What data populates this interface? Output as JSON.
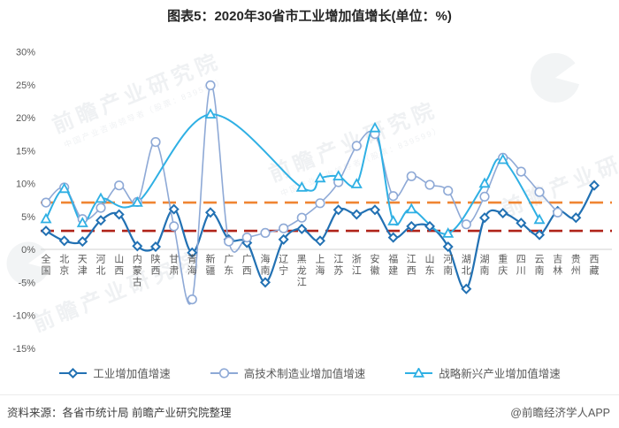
{
  "title": "图表5：2020年30省市工业增加值增长(单位：%)",
  "chart_data": {
    "type": "line",
    "title": "2020年30省市工业增加值增长",
    "unit": "%",
    "xlabel": "",
    "ylabel": "",
    "ylim": [
      -15,
      30
    ],
    "yticks": [
      "30%",
      "25%",
      "20%",
      "15%",
      "10%",
      "5%",
      "0%",
      "-5%",
      "-10%",
      "-15%"
    ],
    "grid": false,
    "legend_position": "bottom",
    "categories": [
      "全国",
      "北京",
      "天津",
      "河北",
      "山西",
      "内蒙古",
      "陕西",
      "甘肃",
      "青海",
      "新疆",
      "广东",
      "广西",
      "海南",
      "辽宁",
      "黑龙江",
      "上海",
      "江苏",
      "浙江",
      "安徽",
      "福建",
      "江西",
      "山东",
      "河南",
      "湖北",
      "湖南",
      "重庆",
      "四川",
      "云南",
      "吉林",
      "贵州",
      "西藏"
    ],
    "series": [
      {
        "name": "工业增加值增速",
        "marker": "diamond",
        "color": "#2271b3",
        "width": 2.2,
        "values": [
          2.8,
          1.3,
          1.2,
          4.4,
          5.3,
          0.5,
          0.4,
          6.1,
          -0.5,
          5.6,
          1.5,
          1.0,
          -5.0,
          1.5,
          3.1,
          1.3,
          6.0,
          5.3,
          6.0,
          1.8,
          3.5,
          3.5,
          0.4,
          -6.0,
          4.8,
          5.5,
          4.0,
          2.2,
          5.8,
          4.8,
          9.7
        ]
      },
      {
        "name": "高技术制造业增加值增速",
        "marker": "circle",
        "color": "#8ea9d6",
        "width": 1.6,
        "values": [
          7.1,
          9.4,
          4.6,
          6.3,
          9.7,
          7.2,
          16.3,
          3.5,
          -7.6,
          24.9,
          1.2,
          1.8,
          2.5,
          3.2,
          4.8,
          7.0,
          10.2,
          15.7,
          17.5,
          8.1,
          11.1,
          9.8,
          8.9,
          3.8,
          8.0,
          13.9,
          11.8,
          8.7,
          5.6,
          null,
          null
        ]
      },
      {
        "name": "战略新兴产业增加值增速",
        "marker": "triangle",
        "color": "#2fb0e4",
        "width": 2,
        "values": [
          4.6,
          9.2,
          4.0,
          7.7,
          null,
          7.1,
          null,
          null,
          null,
          20.5,
          null,
          null,
          null,
          null,
          9.4,
          10.8,
          11.1,
          9.9,
          18.4,
          4.3,
          6.1,
          null,
          2.4,
          null,
          10.0,
          13.6,
          null,
          4.5,
          null,
          null,
          null
        ]
      }
    ],
    "reference_lines": [
      {
        "value": 7.1,
        "style": "dashed",
        "color": "#ef8532"
      },
      {
        "value": 2.8,
        "style": "dashed",
        "color": "#b02319"
      }
    ]
  },
  "watermark": {
    "text": "前瞻产业研究院",
    "subtext": "中国产业咨询领导者（股票：839599）"
  },
  "footer": {
    "source": "资料来源：各省市统计局 前瞻产业研究院整理",
    "credit": "@前瞻经济学人APP"
  }
}
